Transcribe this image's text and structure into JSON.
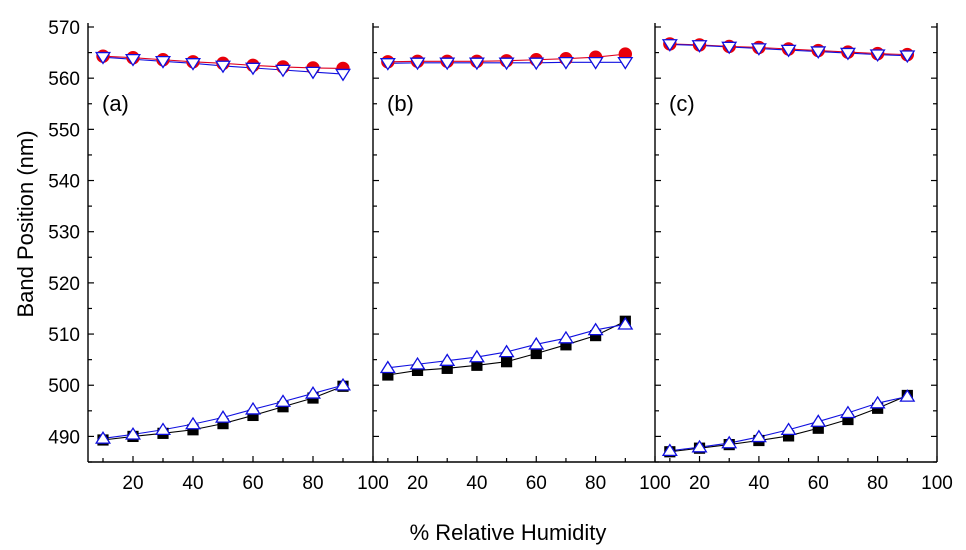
{
  "chart_data": {
    "type": "scatter",
    "xlabel": "% Relative Humidity",
    "ylabel": "Band Position (nm)",
    "ylim": [
      485,
      570
    ],
    "yticks": [
      490,
      500,
      510,
      520,
      530,
      540,
      550,
      560,
      570
    ],
    "xlim": [
      5,
      100
    ],
    "xticks": [
      20,
      40,
      60,
      80,
      100
    ],
    "x": [
      10,
      20,
      30,
      40,
      50,
      60,
      70,
      80,
      90
    ],
    "colors": {
      "red_filled": "#e8000b",
      "black_filled": "#000000",
      "blue_open": "#1010e0",
      "line_red": "#e00020",
      "line_black": "#000000",
      "line_blue": "#1010e0"
    },
    "panels": [
      {
        "label": "(a)",
        "series": [
          {
            "marker": "circle-filled",
            "color": "red",
            "values": [
              564.3,
              564.0,
              563.6,
              563.2,
              562.9,
              562.5,
              562.2,
              562.0,
              561.9
            ]
          },
          {
            "marker": "triangle-down-open",
            "color": "blue",
            "values": [
              564.1,
              563.7,
              563.3,
              562.9,
              562.4,
              562.0,
              561.6,
              561.2,
              560.8
            ]
          },
          {
            "marker": "square-filled",
            "color": "black",
            "values": [
              489.3,
              490.0,
              490.6,
              491.3,
              492.5,
              494.1,
              495.8,
              497.5,
              499.8
            ]
          },
          {
            "marker": "triangle-up-open",
            "color": "blue",
            "values": [
              489.6,
              490.4,
              491.3,
              492.4,
              493.7,
              495.3,
              496.8,
              498.4,
              500.0
            ]
          }
        ]
      },
      {
        "label": "(b)",
        "series": [
          {
            "marker": "circle-filled",
            "color": "red",
            "values": [
              563.2,
              563.3,
              563.3,
              563.3,
              563.4,
              563.6,
              563.8,
              564.1,
              564.7
            ]
          },
          {
            "marker": "triangle-down-open",
            "color": "blue",
            "values": [
              562.9,
              563.0,
              563.0,
              563.0,
              563.0,
              563.0,
              563.1,
              563.1,
              563.1
            ]
          },
          {
            "marker": "square-filled",
            "color": "black",
            "values": [
              502.0,
              502.9,
              503.3,
              503.9,
              504.6,
              506.2,
              507.9,
              509.7,
              512.5
            ]
          },
          {
            "marker": "triangle-up-open",
            "color": "blue",
            "values": [
              503.4,
              504.1,
              504.8,
              505.5,
              506.5,
              508.0,
              509.2,
              510.8,
              511.9
            ]
          }
        ]
      },
      {
        "label": "(c)",
        "series": [
          {
            "marker": "circle-filled",
            "color": "red",
            "values": [
              566.7,
              566.5,
              566.2,
              566.0,
              565.7,
              565.4,
              565.1,
              564.8,
              564.6
            ]
          },
          {
            "marker": "triangle-down-open",
            "color": "blue",
            "values": [
              566.6,
              566.4,
              566.1,
              565.8,
              565.5,
              565.2,
              564.9,
              564.6,
              564.4
            ]
          },
          {
            "marker": "square-filled",
            "color": "black",
            "values": [
              487.0,
              487.7,
              488.4,
              489.2,
              490.1,
              491.6,
              493.3,
              495.5,
              498.0
            ]
          },
          {
            "marker": "triangle-up-open",
            "color": "blue",
            "values": [
              487.2,
              487.9,
              488.7,
              489.9,
              491.3,
              492.9,
              494.6,
              496.5,
              497.8
            ]
          }
        ]
      }
    ]
  }
}
